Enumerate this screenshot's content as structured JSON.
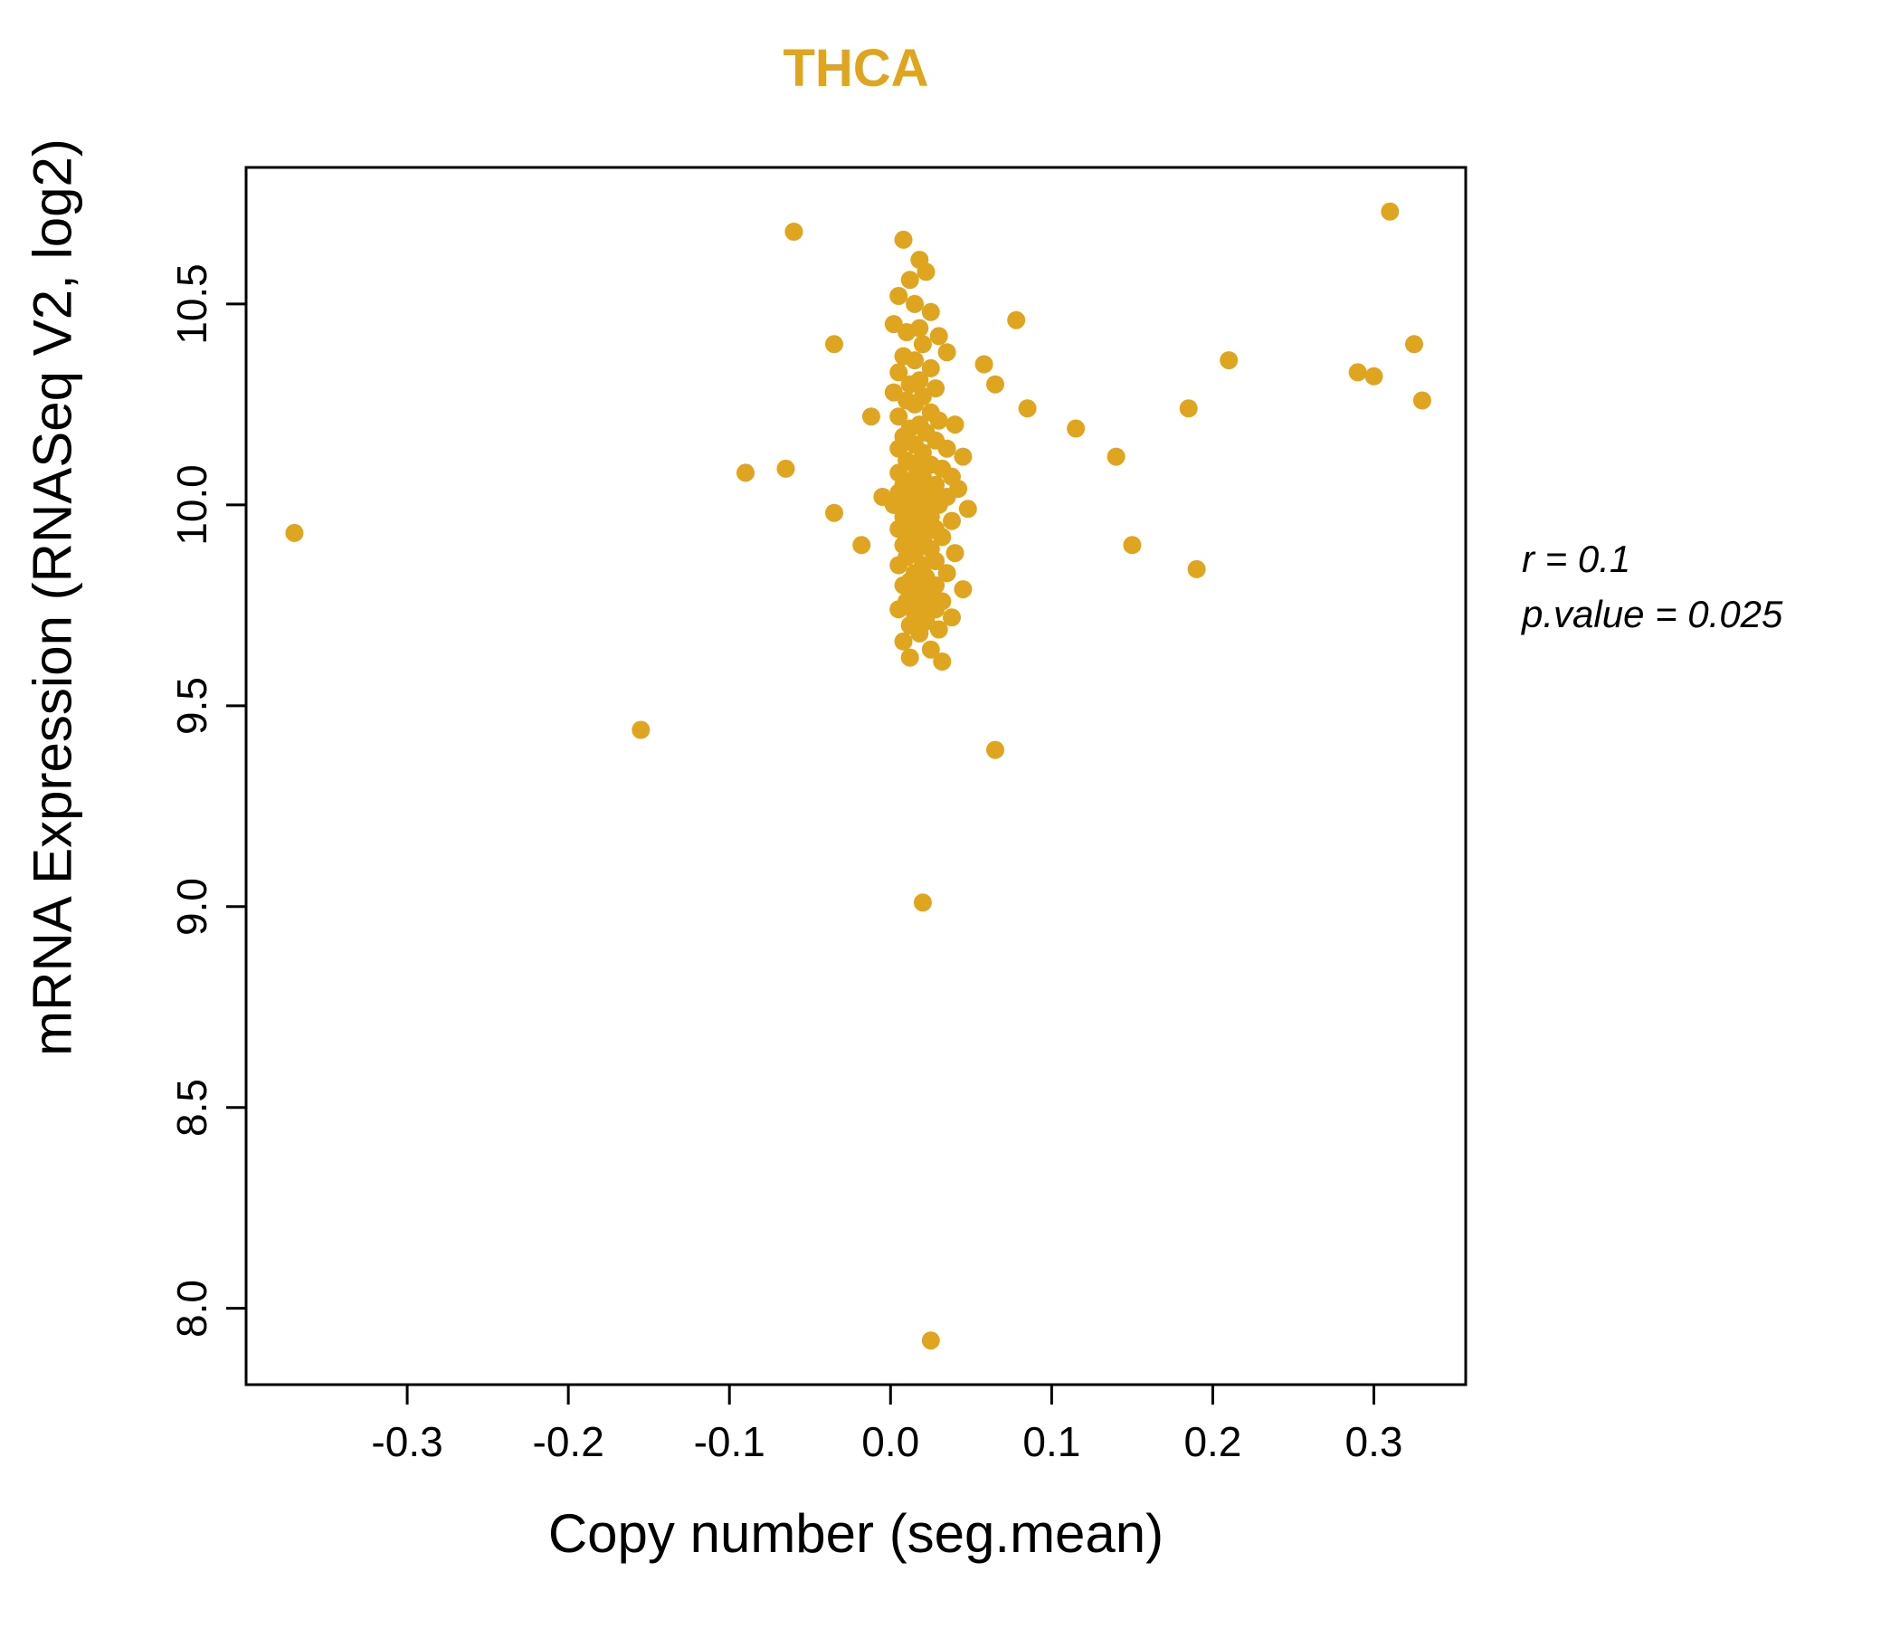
{
  "chart_data": {
    "type": "scatter",
    "title": "THCA",
    "xlabel": "Copy number (seg.mean)",
    "ylabel": "mRNA Expression (RNASeq V2, log2)",
    "xlim": [
      -0.4,
      0.357
    ],
    "ylim": [
      7.81,
      10.84
    ],
    "grid": false,
    "legend": "none",
    "point_color": "#DFA51E",
    "title_color": "#DFA51E",
    "x_ticks": [
      {
        "value": -0.3,
        "label": "-0.3"
      },
      {
        "value": -0.2,
        "label": "-0.2"
      },
      {
        "value": -0.1,
        "label": "-0.1"
      },
      {
        "value": 0.0,
        "label": "0.0"
      },
      {
        "value": 0.1,
        "label": "0.1"
      },
      {
        "value": 0.2,
        "label": "0.2"
      },
      {
        "value": 0.3,
        "label": "0.3"
      }
    ],
    "y_ticks": [
      {
        "value": 8.0,
        "label": "8.0"
      },
      {
        "value": 8.5,
        "label": "8.5"
      },
      {
        "value": 9.0,
        "label": "9.0"
      },
      {
        "value": 9.5,
        "label": "9.5"
      },
      {
        "value": 10.0,
        "label": "10.0"
      },
      {
        "value": 10.5,
        "label": "10.5"
      }
    ],
    "annotation": {
      "line1": "r = 0.1",
      "line2": "p.value = 0.025"
    },
    "points": [
      [
        -0.37,
        9.93
      ],
      [
        -0.155,
        9.44
      ],
      [
        -0.09,
        10.08
      ],
      [
        -0.065,
        10.09
      ],
      [
        -0.06,
        10.68
      ],
      [
        -0.035,
        10.4
      ],
      [
        -0.035,
        9.98
      ],
      [
        -0.018,
        9.9
      ],
      [
        -0.012,
        10.22
      ],
      [
        -0.005,
        10.02
      ],
      [
        0.31,
        10.73
      ],
      [
        0.325,
        10.4
      ],
      [
        0.3,
        10.32
      ],
      [
        0.29,
        10.33
      ],
      [
        0.33,
        10.26
      ],
      [
        0.21,
        10.36
      ],
      [
        0.185,
        10.24
      ],
      [
        0.19,
        9.84
      ],
      [
        0.15,
        9.9
      ],
      [
        0.14,
        10.12
      ],
      [
        0.115,
        10.19
      ],
      [
        0.085,
        10.24
      ],
      [
        0.078,
        10.46
      ],
      [
        0.065,
        10.3
      ],
      [
        0.058,
        10.35
      ],
      [
        0.065,
        9.39
      ],
      [
        0.02,
        9.01
      ],
      [
        0.025,
        7.92
      ],
      [
        0.008,
        10.66
      ],
      [
        0.018,
        10.61
      ],
      [
        0.022,
        10.58
      ],
      [
        0.012,
        10.56
      ],
      [
        0.005,
        10.52
      ],
      [
        0.015,
        10.5
      ],
      [
        0.025,
        10.48
      ],
      [
        0.002,
        10.45
      ],
      [
        0.018,
        10.44
      ],
      [
        0.01,
        10.43
      ],
      [
        0.03,
        10.42
      ],
      [
        0.02,
        10.4
      ],
      [
        0.035,
        10.38
      ],
      [
        0.008,
        10.37
      ],
      [
        0.015,
        10.36
      ],
      [
        0.025,
        10.34
      ],
      [
        0.005,
        10.33
      ],
      [
        0.018,
        10.31
      ],
      [
        0.012,
        10.3
      ],
      [
        0.028,
        10.29
      ],
      [
        0.002,
        10.28
      ],
      [
        0.02,
        10.27
      ],
      [
        0.01,
        10.26
      ],
      [
        0.015,
        10.25
      ],
      [
        0.025,
        10.23
      ],
      [
        0.005,
        10.22
      ],
      [
        0.03,
        10.21
      ],
      [
        0.018,
        10.2
      ],
      [
        0.04,
        10.2
      ],
      [
        0.012,
        10.19
      ],
      [
        0.022,
        10.18
      ],
      [
        0.008,
        10.17
      ],
      [
        0.028,
        10.16
      ],
      [
        0.015,
        10.15
      ],
      [
        0.035,
        10.14
      ],
      [
        0.005,
        10.14
      ],
      [
        0.02,
        10.13
      ],
      [
        0.045,
        10.12
      ],
      [
        0.01,
        10.11
      ],
      [
        0.025,
        10.1
      ],
      [
        0.015,
        10.1
      ],
      [
        0.032,
        10.09
      ],
      [
        0.005,
        10.08
      ],
      [
        0.02,
        10.07
      ],
      [
        0.038,
        10.07
      ],
      [
        0.012,
        10.06
      ],
      [
        0.028,
        10.05
      ],
      [
        0.008,
        10.05
      ],
      [
        0.018,
        10.04
      ],
      [
        0.042,
        10.04
      ],
      [
        0.025,
        10.03
      ],
      [
        0.005,
        10.03
      ],
      [
        0.015,
        10.02
      ],
      [
        0.035,
        10.02
      ],
      [
        0.01,
        10.01
      ],
      [
        0.022,
        10.01
      ],
      [
        0.03,
        10.0
      ],
      [
        0.002,
        10.0
      ],
      [
        0.018,
        9.99
      ],
      [
        0.048,
        9.99
      ],
      [
        0.012,
        9.98
      ],
      [
        0.025,
        9.97
      ],
      [
        0.008,
        9.97
      ],
      [
        0.02,
        9.96
      ],
      [
        0.038,
        9.96
      ],
      [
        0.015,
        9.95
      ],
      [
        0.028,
        9.94
      ],
      [
        0.005,
        9.94
      ],
      [
        0.022,
        9.93
      ],
      [
        0.012,
        9.92
      ],
      [
        0.032,
        9.92
      ],
      [
        0.018,
        9.91
      ],
      [
        0.008,
        9.9
      ],
      [
        0.025,
        9.89
      ],
      [
        0.015,
        9.88
      ],
      [
        0.04,
        9.88
      ],
      [
        0.01,
        9.87
      ],
      [
        0.028,
        9.86
      ],
      [
        0.02,
        9.85
      ],
      [
        0.005,
        9.85
      ],
      [
        0.015,
        9.83
      ],
      [
        0.035,
        9.83
      ],
      [
        0.022,
        9.82
      ],
      [
        0.012,
        9.81
      ],
      [
        0.028,
        9.8
      ],
      [
        0.008,
        9.8
      ],
      [
        0.018,
        9.79
      ],
      [
        0.045,
        9.79
      ],
      [
        0.025,
        9.78
      ],
      [
        0.015,
        9.77
      ],
      [
        0.032,
        9.76
      ],
      [
        0.01,
        9.76
      ],
      [
        0.02,
        9.75
      ],
      [
        0.005,
        9.74
      ],
      [
        0.028,
        9.74
      ],
      [
        0.015,
        9.73
      ],
      [
        0.038,
        9.72
      ],
      [
        0.022,
        9.71
      ],
      [
        0.012,
        9.7
      ],
      [
        0.03,
        9.69
      ],
      [
        0.018,
        9.68
      ],
      [
        0.008,
        9.66
      ],
      [
        0.025,
        9.64
      ],
      [
        0.012,
        9.62
      ],
      [
        0.032,
        9.61
      ]
    ]
  }
}
